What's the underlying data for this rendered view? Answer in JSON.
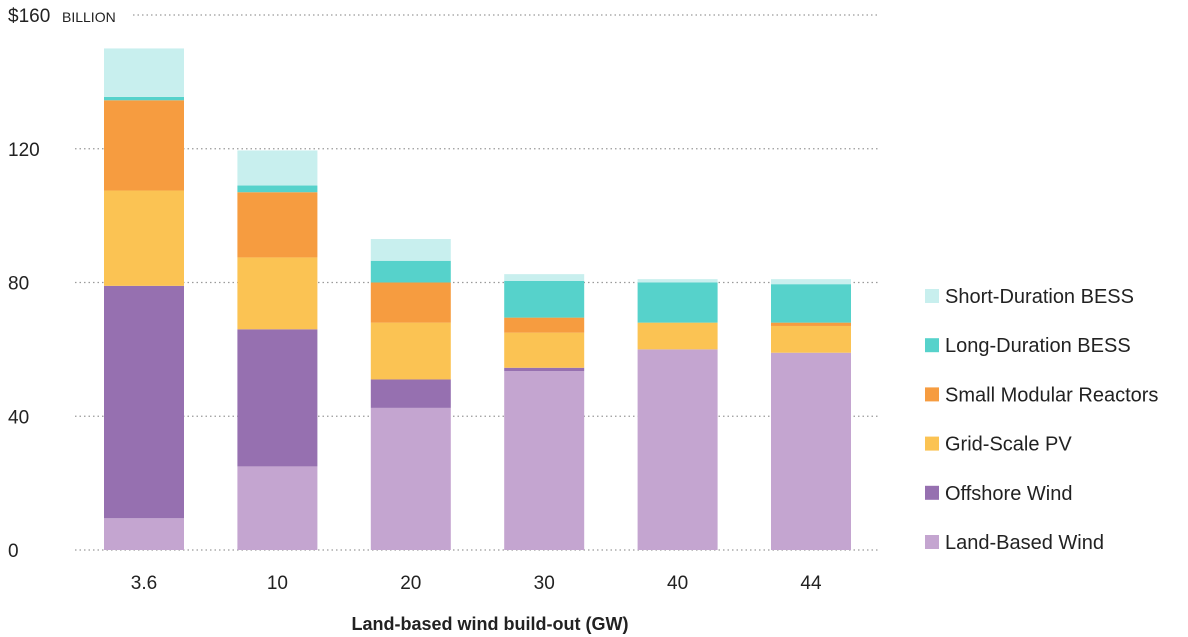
{
  "chart_data": {
    "type": "bar",
    "stacked": true,
    "xlabel": "Land-based wind build-out (GW)",
    "ylabel": "",
    "y_unit": "BILLION",
    "y_top_label": "$160",
    "y_ticks": [
      0,
      40,
      80,
      120,
      160
    ],
    "ylim": [
      0,
      160
    ],
    "grid": "dotted horizontal",
    "legend_position": "right",
    "categories": [
      "3.6",
      "10",
      "20",
      "30",
      "40",
      "44"
    ],
    "series": [
      {
        "name": "Land-Based Wind",
        "color": "#c4a5d0",
        "values": [
          9.5,
          25,
          42.5,
          53.5,
          60,
          59
        ]
      },
      {
        "name": "Offshore Wind",
        "color": "#9670b0",
        "values": [
          69.5,
          41,
          8.5,
          1,
          0,
          0
        ]
      },
      {
        "name": "Grid-Scale PV",
        "color": "#fbc353",
        "values": [
          28.5,
          21.5,
          17,
          10.5,
          8,
          8
        ]
      },
      {
        "name": "Small Modular Reactors",
        "color": "#f69c40",
        "values": [
          27,
          19.5,
          12,
          4.5,
          0,
          1
        ]
      },
      {
        "name": "Long-Duration BESS",
        "color": "#56d2cb",
        "values": [
          1,
          2,
          6.5,
          11,
          12,
          11.5
        ]
      },
      {
        "name": "Short-Duration BESS",
        "color": "#c8efee",
        "values": [
          14.5,
          10.5,
          6.5,
          2,
          1,
          1.5
        ]
      }
    ]
  }
}
